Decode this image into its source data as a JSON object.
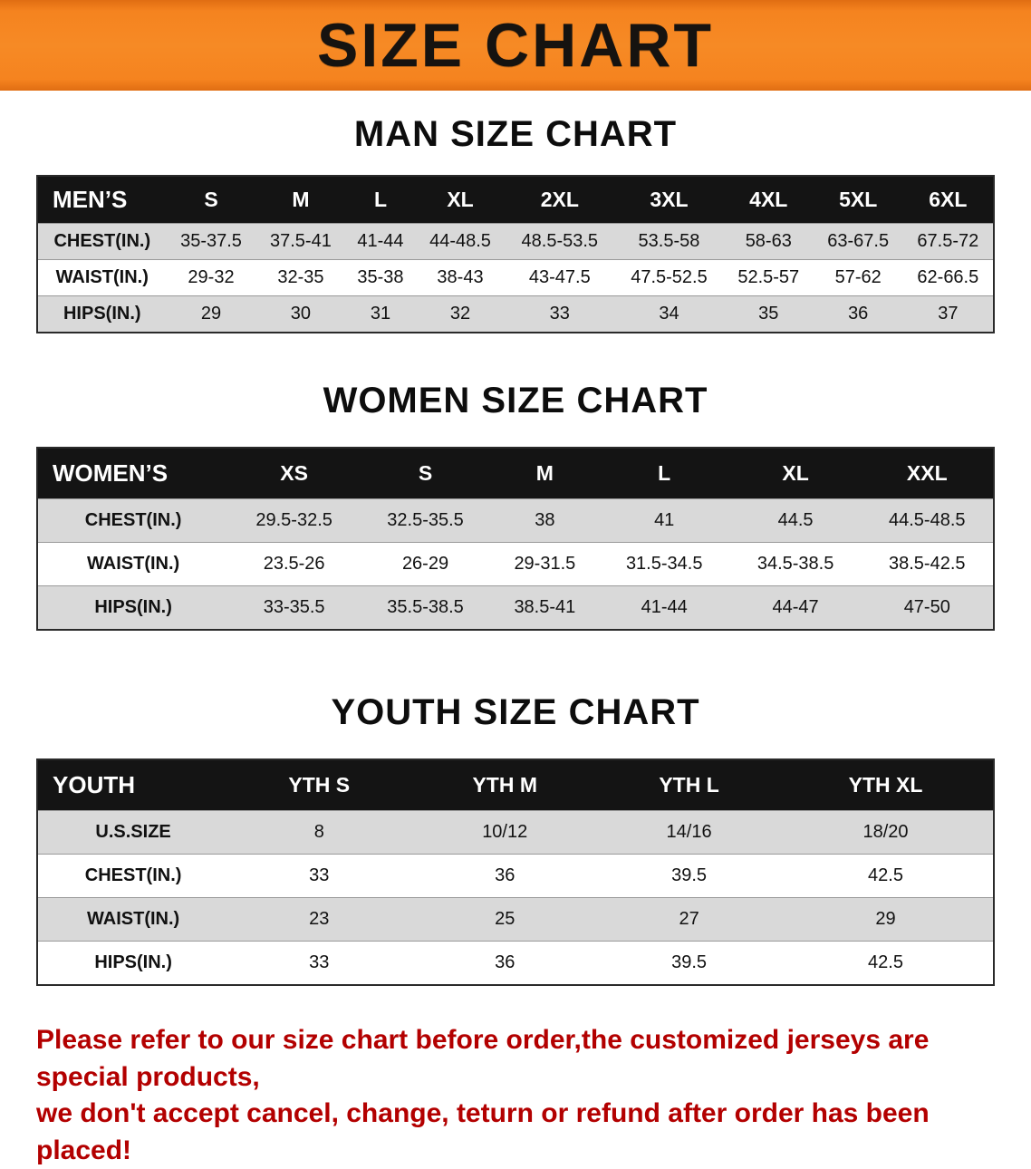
{
  "banner": {
    "title": "SIZE CHART",
    "bg_color": "#f5831f",
    "text_color": "#161310"
  },
  "colors": {
    "table_header_bg": "#141414",
    "table_header_text": "#ffffff",
    "row_stripe_gray": "#d9d9d9",
    "disclaimer_red": "#b30000"
  },
  "sections": [
    {
      "title": "MAN SIZE CHART",
      "header": [
        "MEN’S",
        "S",
        "M",
        "L",
        "XL",
        "2XL",
        "3XL",
        "4XL",
        "5XL",
        "6XL"
      ],
      "rows": [
        [
          "CHEST(IN.)",
          "35-37.5",
          "37.5-41",
          "41-44",
          "44-48.5",
          "48.5-53.5",
          "53.5-58",
          "58-63",
          "63-67.5",
          "67.5-72"
        ],
        [
          "WAIST(IN.)",
          "29-32",
          "32-35",
          "35-38",
          "38-43",
          "43-47.5",
          "47.5-52.5",
          "52.5-57",
          "57-62",
          "62-66.5"
        ],
        [
          "HIPS(IN.)",
          "29",
          "30",
          "31",
          "32",
          "33",
          "34",
          "35",
          "36",
          "37"
        ]
      ]
    },
    {
      "title": "WOMEN SIZE CHART",
      "header": [
        "WOMEN’S",
        "XS",
        "S",
        "M",
        "L",
        "XL",
        "XXL"
      ],
      "rows": [
        [
          "CHEST(IN.)",
          "29.5-32.5",
          "32.5-35.5",
          "38",
          "41",
          "44.5",
          "44.5-48.5"
        ],
        [
          "WAIST(IN.)",
          "23.5-26",
          "26-29",
          "29-31.5",
          "31.5-34.5",
          "34.5-38.5",
          "38.5-42.5"
        ],
        [
          "HIPS(IN.)",
          "33-35.5",
          "35.5-38.5",
          "38.5-41",
          "41-44",
          "44-47",
          "47-50"
        ]
      ]
    },
    {
      "title": "YOUTH SIZE CHART",
      "header": [
        "YOUTH",
        "YTH S",
        "YTH M",
        "YTH L",
        "YTH XL"
      ],
      "rows": [
        [
          "U.S.SIZE",
          "8",
          "10/12",
          "14/16",
          "18/20"
        ],
        [
          "CHEST(IN.)",
          "33",
          "36",
          "39.5",
          "42.5"
        ],
        [
          "WAIST(IN.)",
          "23",
          "25",
          "27",
          "29"
        ],
        [
          "HIPS(IN.)",
          "33",
          "36",
          "39.5",
          "42.5"
        ]
      ]
    }
  ],
  "disclaimer": {
    "line1": "Please refer to our size chart before order,the customized jerseys are special products,",
    "line2": "we don't accept cancel, change, teturn or refund after order has been placed!"
  }
}
